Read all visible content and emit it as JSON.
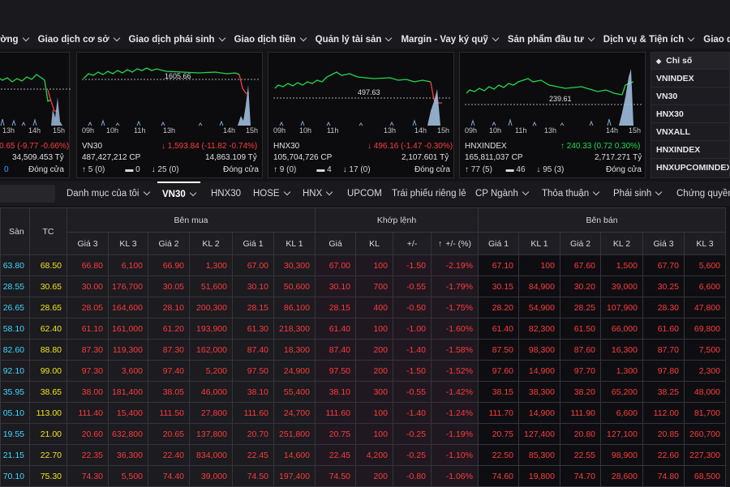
{
  "menu": [
    "ường",
    "Giao dịch cơ sở",
    "Giao dịch phái sinh",
    "Giao dịch tiền",
    "Quản lý tài sản",
    "Margin - Vay ký quỹ",
    "Sản phẩm đầu tư",
    "Dịch vụ & Tiện ích",
    "Giao diện của tôi"
  ],
  "charts": [
    {
      "name": "",
      "ref": "",
      "times": [
        "13h",
        "14h",
        "15h"
      ],
      "change": "0.65 (-9.77 -0.66%)",
      "volume": "34,509.453 Tỷ",
      "up": "",
      "ref_count": "",
      "down": "0",
      "status": "Đóng cửa"
    },
    {
      "name": "VN30",
      "ref": "1605.66",
      "times": [
        "09h",
        "10h",
        "11h",
        "13h",
        "14h",
        "15h"
      ],
      "change": "1,593.84 (-11.82 -0.74%)",
      "shares": "487,427,212 CP",
      "volume": "14,863.109 Tỷ",
      "up": "5",
      "up_sub": "0",
      "ref_count": "0",
      "down": "25",
      "down_sub": "0",
      "status": "Đóng cửa"
    },
    {
      "name": "HNX30",
      "ref": "497.63",
      "times": [
        "09h",
        "10h",
        "11h",
        "13h",
        "14h",
        "15h"
      ],
      "change": "496.16 (-1.47 -0.30%)",
      "shares": "105,704,726 CP",
      "volume": "2,107.601 Tỷ",
      "up": "9",
      "up_sub": "0",
      "ref_count": "4",
      "down": "17",
      "down_sub": "0",
      "status": "Đóng cửa"
    },
    {
      "name": "HNXINDEX",
      "ref": "239.61",
      "times": [
        "09h",
        "10h",
        "11h",
        "13h",
        "14h",
        "15h"
      ],
      "change": "240.33 (0.72 0.30%)",
      "shares": "165,811,037 CP",
      "volume": "2,717.271 Tỷ",
      "up": "77",
      "up_sub": "5",
      "ref_count": "46",
      "down": "95",
      "down_sub": "3",
      "status": "Đóng cửa"
    }
  ],
  "index_list": {
    "header": "Chỉ số",
    "items": [
      "VNINDEX",
      "VN30",
      "HNX30",
      "VNXALL",
      "HNXINDEX",
      "HNXUPCOMINDEX"
    ]
  },
  "tabs": [
    "Danh mục của tôi",
    "VN30",
    "HNX30",
    "HOSE",
    "HNX",
    "UPCOM",
    "Trái phiếu riêng lẻ",
    "CP Ngành",
    "Thỏa thuận",
    "Phái sinh",
    "Chứng quyền"
  ],
  "table": {
    "headers": {
      "san": "Sàn",
      "tc": "TC",
      "ben_mua": "Bên mua",
      "khop_lenh": "Khớp lệnh",
      "ben_ban": "Bên bán",
      "gia3": "Giá 3",
      "kl3": "KL 3",
      "gia2": "Giá 2",
      "kl2": "KL 2",
      "gia1": "Giá 1",
      "kl1": "KL 1",
      "gia": "Giá",
      "kl": "KL",
      "pm": "+/-",
      "pct": "+/- (%)"
    },
    "rows": [
      [
        "63.80",
        "68.50",
        "66.80",
        "6,100",
        "66.90",
        "1,300",
        "67.00",
        "30,300",
        "67.00",
        "100",
        "-1.50",
        "-2.19%",
        "67.10",
        "100",
        "67.60",
        "1,500",
        "67.70",
        "5,600"
      ],
      [
        "28.55",
        "30.65",
        "30.00",
        "176,700",
        "30.05",
        "51,600",
        "30.10",
        "50,600",
        "30.10",
        "700",
        "-0.55",
        "-1.79%",
        "30.15",
        "84,900",
        "30.20",
        "39,000",
        "30.25",
        "6,600"
      ],
      [
        "26.65",
        "28.65",
        "28.05",
        "164,600",
        "28.10",
        "200,300",
        "28.15",
        "86,100",
        "28.15",
        "400",
        "-0.50",
        "-1.75%",
        "28.20",
        "54,900",
        "28.25",
        "107,900",
        "28.30",
        "47,800"
      ],
      [
        "58.10",
        "62.40",
        "61.10",
        "161,000",
        "61.20",
        "193,900",
        "61.30",
        "218,300",
        "61.40",
        "100",
        "-1.00",
        "-1.60%",
        "61.40",
        "82,300",
        "61.50",
        "66,000",
        "61.60",
        "69,800"
      ],
      [
        "82.60",
        "88.80",
        "87.30",
        "119,300",
        "87.30",
        "162,000",
        "87.40",
        "18,300",
        "87.40",
        "200",
        "-1.40",
        "-1.58%",
        "87.50",
        "98,300",
        "87.60",
        "16,300",
        "87.70",
        "7,500"
      ],
      [
        "92.10",
        "99.00",
        "97.30",
        "3,600",
        "97.40",
        "5,200",
        "97.50",
        "24,900",
        "97.50",
        "200",
        "-1.50",
        "-1.52%",
        "97.60",
        "14,900",
        "97.70",
        "1,300",
        "97.80",
        "2,300"
      ],
      [
        "35.95",
        "38.65",
        "38.00",
        "181,400",
        "38.05",
        "46,000",
        "38.10",
        "55,400",
        "38.10",
        "300",
        "-0.55",
        "-1.42%",
        "38.15",
        "38,300",
        "38.20",
        "65,200",
        "38.25",
        "48,000"
      ],
      [
        "05.10",
        "113.00",
        "111.40",
        "15,400",
        "111.50",
        "27,800",
        "111.60",
        "24,700",
        "111.60",
        "100",
        "-1.40",
        "-1.24%",
        "111.70",
        "14,900",
        "111.90",
        "6,600",
        "112.00",
        "81,700"
      ],
      [
        "19.55",
        "21.00",
        "20.60",
        "632,800",
        "20.65",
        "137,800",
        "20.70",
        "251,800",
        "20.75",
        "100",
        "-0.25",
        "-1.19%",
        "20.75",
        "127,400",
        "20.80",
        "127,100",
        "20.85",
        "260,700"
      ],
      [
        "21.15",
        "22.70",
        "22.35",
        "36,300",
        "22.40",
        "834,000",
        "22.45",
        "14,600",
        "22.45",
        "4,200",
        "-0.25",
        "-1.10%",
        "22.50",
        "85,300",
        "22.55",
        "98,900",
        "22.60",
        "227,300"
      ],
      [
        "70.10",
        "75.30",
        "74.30",
        "5,500",
        "74.40",
        "39,000",
        "74.50",
        "197,400",
        "74.50",
        "200",
        "-0.80",
        "-1.06%",
        "74.60",
        "19,800",
        "74.70",
        "28,600",
        "74.80",
        "68,500"
      ]
    ]
  },
  "colors": {
    "red": "#ff3b3b",
    "green": "#1ddc48",
    "yellow": "#f5e51b",
    "cyan": "#3fd8ff",
    "purple": "#c46bff",
    "blue": "#3da0ff"
  }
}
